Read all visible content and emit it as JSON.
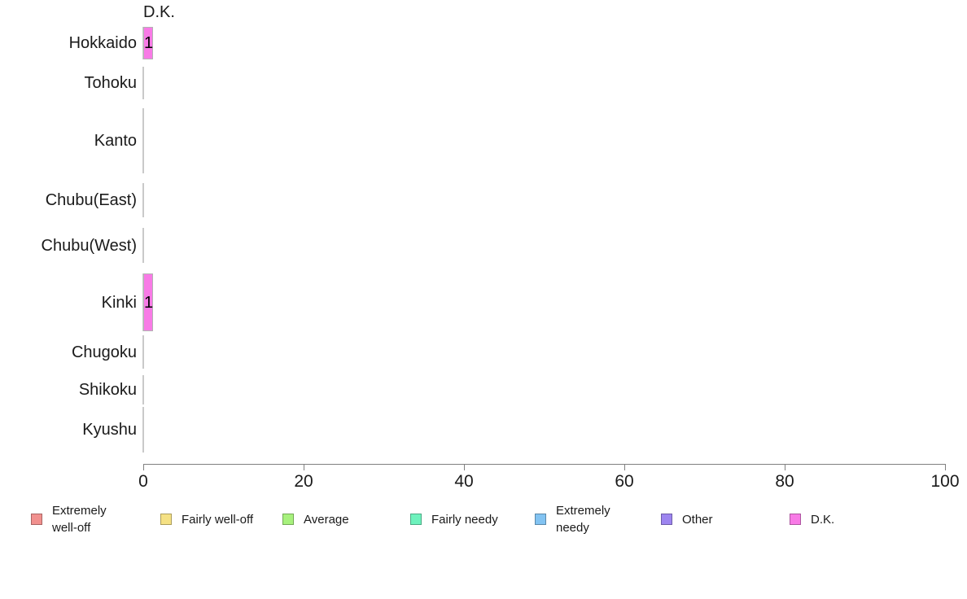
{
  "chart_data": {
    "type": "bar",
    "orientation": "horizontal",
    "title": "D.K.",
    "xlabel": "",
    "ylabel": "",
    "xlim": [
      0,
      100
    ],
    "x_ticks": [
      "0",
      "20",
      "40",
      "60",
      "80",
      "100"
    ],
    "grid": false,
    "legend_position": "bottom",
    "categories": [
      "Hokkaido",
      "Tohoku",
      "Kanto",
      "Chubu(East)",
      "Chubu(West)",
      "Kinki",
      "Chugoku",
      "Shikoku",
      "Kyushu"
    ],
    "series": [
      {
        "name": "D.K.",
        "color": "#f87ae6",
        "values": [
          1,
          0,
          0,
          0,
          0,
          1,
          0,
          0,
          0
        ],
        "bar_labels": [
          "1",
          null,
          null,
          null,
          null,
          "1",
          null,
          null,
          null
        ]
      }
    ],
    "band_layout": {
      "tops": [
        33,
        82,
        133,
        225,
        280,
        336,
        412,
        461,
        500
      ],
      "heights": [
        40,
        40,
        80,
        42,
        43,
        71,
        41,
        36,
        56
      ]
    },
    "legend": [
      {
        "label": "Extremely well-off",
        "color": "#f1908e"
      },
      {
        "label": "Fairly well-off",
        "color": "#f5e184"
      },
      {
        "label": "Average",
        "color": "#a7f17d"
      },
      {
        "label": "Fairly needy",
        "color": "#6ef2bd"
      },
      {
        "label": "Extremely needy",
        "color": "#82c3f2"
      },
      {
        "label": "Other",
        "color": "#9d85f0"
      },
      {
        "label": "D.K.",
        "color": "#f87ae6"
      }
    ]
  },
  "colors": {
    "axis": "#808080",
    "baseline": "#c9c9c9",
    "text": "#1a1a1a",
    "background": "#ffffff"
  }
}
